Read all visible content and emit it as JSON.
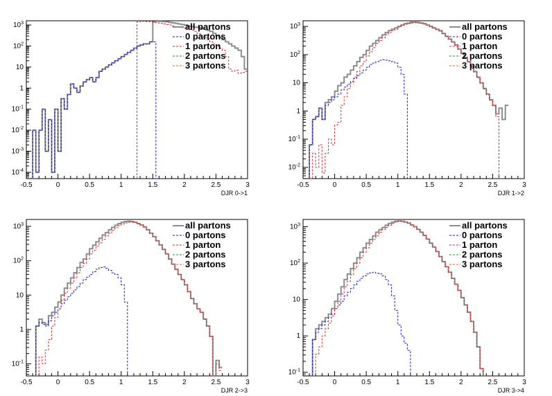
{
  "colors": {
    "all": "#8c8c8c",
    "p0": "#1a1ac8",
    "p1": "#d03030",
    "p2": "#2e8b2e",
    "p3": "#e06020"
  },
  "chart_data": [
    {
      "type": "histogram-step",
      "xlabel": "DJR 0->1",
      "xlim": [
        -0.5,
        3
      ],
      "ylim_log10": [
        -4.3,
        3.2
      ],
      "log_y": true,
      "xticks": [
        -0.5,
        0,
        0.5,
        1,
        1.5,
        2,
        2.5,
        3
      ],
      "yticks": [
        {
          "exp": -4,
          "label": "10-4"
        },
        {
          "exp": -3,
          "label": "10-3"
        },
        {
          "exp": -2,
          "label": "10-2"
        },
        {
          "exp": -1,
          "label": "10-1"
        },
        {
          "exp": 0,
          "label": "1"
        },
        {
          "exp": 1,
          "label": "10"
        },
        {
          "exp": 2,
          "label": "102"
        },
        {
          "exp": 3,
          "label": "103"
        }
      ],
      "legend": [
        "all partons",
        "0 partons",
        "1 parton",
        "2 partons",
        "3 partons"
      ],
      "series": [
        {
          "name": "all partons",
          "color_key": "all",
          "x0": -0.5,
          "dx": 0.05,
          "log10_values": [
            null,
            null,
            -2,
            -4,
            -2,
            -1,
            -3,
            -1.5,
            -4,
            -1,
            -3,
            -0.5,
            -1,
            -0.3,
            0.2,
            0,
            -0.2,
            0.1,
            0.3,
            0.4,
            0.5,
            0.3,
            0.5,
            0.8,
            0.9,
            1,
            1.1,
            1.2,
            1.3,
            1.4,
            1.5,
            1.6,
            1.7,
            1.8,
            1.9,
            2,
            2.05,
            2.1,
            2.1,
            2.2,
            3.15,
            3.18,
            3.17,
            3.16,
            3.15,
            3.12,
            3.1,
            3.08,
            3.05,
            3.02,
            3,
            2.95,
            2.92,
            2.9,
            2.88,
            2.85,
            2.8,
            2.75,
            2.7,
            2.6,
            2.5,
            2.4,
            2.3,
            2.2,
            2.1,
            2,
            1.9,
            1.8,
            1.5,
            0.9
          ]
        },
        {
          "name": "0 partons",
          "color_key": "p0",
          "x0": -0.5,
          "dx": 0.05,
          "log10_values": [
            null,
            null,
            -2,
            -4,
            -2,
            -1,
            -3,
            -1.5,
            -4,
            -1,
            -3,
            -0.5,
            -1,
            -0.3,
            0.2,
            0,
            -0.2,
            0.1,
            0.3,
            0.4,
            0.5,
            0.3,
            0.5,
            0.8,
            0.9,
            1,
            1.1,
            1.2,
            1.3,
            1.4,
            1.5,
            1.6,
            1.7,
            1.8,
            1.9,
            2,
            2.05,
            2.1,
            2.1,
            2.2,
            2.2,
            null
          ]
        },
        {
          "name": "1 parton",
          "color_key": "p1",
          "x0": 1.25,
          "dx": 0.05,
          "log10_values": [
            3.15,
            3.18,
            3.17,
            3.16,
            3.15,
            3.12,
            3.1,
            3.08,
            3.05,
            3.02,
            3,
            2.95,
            2.92,
            2.9,
            2.88,
            2.85,
            2.8,
            2.75,
            2.7,
            2.6,
            2.5,
            2.4,
            2.3,
            2.2,
            2.1,
            2,
            1.9,
            1.8,
            1.5,
            0.9,
            0.8,
            0.85,
            0.7,
            0.75,
            0.8
          ]
        }
      ]
    },
    {
      "type": "histogram-step",
      "xlabel": "DJR 1->2",
      "xlim": [
        -0.5,
        3
      ],
      "ylim_log10": [
        -2.4,
        3.2
      ],
      "log_y": true,
      "xticks": [
        -0.5,
        0,
        0.5,
        1,
        1.5,
        2,
        2.5,
        3
      ],
      "yticks": [
        {
          "exp": -2,
          "label": "10-2"
        },
        {
          "exp": -1,
          "label": "10-1"
        },
        {
          "exp": 0,
          "label": "1"
        },
        {
          "exp": 1,
          "label": "10"
        },
        {
          "exp": 2,
          "label": "102"
        },
        {
          "exp": 3,
          "label": "103"
        }
      ],
      "legend": [
        "all partons",
        "0 partons",
        "1 parton",
        "2 partons",
        "3 partons"
      ],
      "series": [
        {
          "name": "all partons",
          "color_key": "all",
          "x0": -0.4,
          "dx": 0.05,
          "log10_values": [
            -1.2,
            -0.3,
            -0.2,
            0.1,
            -0.3,
            0.3,
            0.4,
            0.5,
            0.7,
            0.9,
            1,
            1.2,
            1.3,
            1.45,
            1.6,
            1.75,
            1.9,
            2,
            2.15,
            2.3,
            2.4,
            2.5,
            2.6,
            2.7,
            2.78,
            2.85,
            2.9,
            2.95,
            3,
            3.05,
            3.1,
            3.12,
            3.15,
            3.15,
            3.14,
            3.12,
            3.1,
            3.05,
            3,
            2.95,
            2.9,
            2.85,
            2.75,
            2.65,
            2.55,
            2.45,
            2.35,
            2.2,
            2.05,
            1.9,
            1.75,
            1.6,
            1.4,
            1.2,
            1,
            0.8,
            0.6,
            0.4,
            0.2,
            -0.1,
            0.1,
            -0.3,
            0.2
          ]
        },
        {
          "name": "0 partons",
          "color_key": "p0",
          "x0": -0.4,
          "dx": 0.05,
          "log10_values": [
            -1.2,
            -0.3,
            -0.2,
            0.1,
            -0.3,
            0.2,
            0.3,
            0.4,
            0.5,
            0.6,
            0.75,
            0.85,
            0.95,
            1.05,
            1.15,
            1.25,
            1.35,
            1.45,
            1.55,
            1.65,
            1.7,
            1.75,
            1.8,
            1.82,
            1.8,
            1.78,
            1.75,
            1.7,
            1.55,
            1.3,
            0.6,
            null
          ]
        },
        {
          "name": "1 parton",
          "color_key": "p1",
          "x0": -0.4,
          "dx": 0.05,
          "log10_values": [
            -2.4,
            -1.5,
            -2,
            -1.2,
            -2.2,
            -1.5,
            -1,
            -1.2,
            -0.5,
            -0.4,
            0.2,
            0.5,
            0.8,
            1,
            1.2,
            1.4,
            1.6,
            1.75,
            1.95,
            2.1,
            2.25,
            2.4,
            2.5,
            2.6,
            2.7,
            2.78,
            2.85,
            2.9,
            2.98,
            3.03,
            3.08,
            3.1,
            3.12,
            3.13,
            3.12,
            3.11,
            3.08,
            3.04,
            2.98,
            2.94,
            2.88,
            2.83,
            2.74,
            2.64,
            2.54,
            2.44,
            2.33,
            2.18,
            2.03,
            1.88,
            1.73,
            1.58,
            1.38,
            1.18,
            0.98,
            0.78,
            0.58,
            0.38,
            0.18,
            -0.2,
            -2.4
          ]
        }
      ]
    },
    {
      "type": "histogram-step",
      "xlabel": "DJR 2->3",
      "xlim": [
        -0.5,
        3
      ],
      "ylim_log10": [
        -1.35,
        3.2
      ],
      "log_y": true,
      "xticks": [
        -0.5,
        0,
        0.5,
        1,
        1.5,
        2,
        2.5,
        3
      ],
      "yticks": [
        {
          "exp": -1,
          "label": "10-1"
        },
        {
          "exp": 0,
          "label": "1"
        },
        {
          "exp": 1,
          "label": "10"
        },
        {
          "exp": 2,
          "label": "102"
        },
        {
          "exp": 3,
          "label": "103"
        }
      ],
      "legend": [
        "all partons",
        "0 partons",
        "1 parton",
        "2 partons",
        "3 partons"
      ],
      "series": [
        {
          "name": "all partons",
          "color_key": "all",
          "x0": -0.35,
          "dx": 0.05,
          "log10_values": [
            0.1,
            0.3,
            0.2,
            0.15,
            0.4,
            0.5,
            0.65,
            0.8,
            1,
            1.2,
            1.35,
            1.5,
            1.65,
            1.8,
            1.95,
            2.05,
            2.2,
            2.35,
            2.45,
            2.55,
            2.65,
            2.75,
            2.82,
            2.9,
            2.97,
            3.03,
            3.08,
            3.12,
            3.14,
            3.15,
            3.14,
            3.12,
            3.08,
            3.04,
            2.98,
            2.9,
            2.8,
            2.7,
            2.58,
            2.46,
            2.33,
            2.2,
            2.05,
            1.9,
            1.75,
            1.6,
            1.45,
            1.3,
            1.1,
            0.9,
            0.75,
            0.6,
            0.5,
            0.3,
            0.1,
            -0.2,
            -1.35,
            -0.9,
            -1.1
          ]
        },
        {
          "name": "0 partons",
          "color_key": "p0",
          "x0": -0.35,
          "dx": 0.05,
          "log10_values": [
            0.1,
            0.2,
            0.15,
            0.1,
            0.25,
            0.4,
            0.5,
            0.6,
            0.75,
            0.85,
            0.95,
            1.05,
            1.15,
            1.25,
            1.35,
            1.45,
            1.52,
            1.6,
            1.68,
            1.75,
            1.8,
            1.82,
            1.78,
            1.72,
            1.65,
            1.6,
            1.5,
            1.3,
            0.8,
            -1.35,
            null
          ]
        },
        {
          "name": "1 parton",
          "color_key": "p1",
          "x0": -0.35,
          "dx": 0.05,
          "log10_values": [
            -1.35,
            -0.8,
            -1,
            -0.6,
            -0.3,
            0.1,
            0.35,
            0.6,
            0.85,
            1.05,
            1.2,
            1.35,
            1.5,
            1.65,
            1.8,
            1.92,
            2.05,
            2.2,
            2.3,
            2.42,
            2.52,
            2.62,
            2.72,
            2.8,
            2.88,
            2.96,
            3.02,
            3.07,
            3.1,
            3.12,
            3.12,
            3.11,
            3.08,
            3.04,
            2.98,
            2.9,
            2.8,
            2.7,
            2.58,
            2.46,
            2.33,
            2.2,
            2.05,
            1.9,
            1.75,
            1.6,
            1.45,
            1.3,
            1.1,
            0.9,
            0.75,
            0.6,
            0.5,
            0.3,
            0.1,
            -0.2,
            -1.35,
            -1,
            -1.2
          ]
        }
      ]
    },
    {
      "type": "histogram-step",
      "xlabel": "DJR 3->4",
      "xlim": [
        -0.5,
        3
      ],
      "ylim_log10": [
        -1.1,
        3.2
      ],
      "log_y": true,
      "xticks": [
        -0.5,
        0,
        0.5,
        1,
        1.5,
        2,
        2.5,
        3
      ],
      "yticks": [
        {
          "exp": -1,
          "label": "10-1"
        },
        {
          "exp": 0,
          "label": "1"
        },
        {
          "exp": 1,
          "label": "10"
        },
        {
          "exp": 2,
          "label": "102"
        },
        {
          "exp": 3,
          "label": "103"
        }
      ],
      "legend": [
        "all partons",
        "0 partons",
        "1 parton",
        "2 partons",
        "3 partons"
      ],
      "series": [
        {
          "name": "all partons",
          "color_key": "all",
          "x0": -0.35,
          "dx": 0.05,
          "log10_values": [
            -0.1,
            0.2,
            0.3,
            0.4,
            0.5,
            0.6,
            0.75,
            0.95,
            1.15,
            1.35,
            1.55,
            1.7,
            1.85,
            2,
            2.15,
            2.3,
            2.42,
            2.55,
            2.65,
            2.75,
            2.85,
            2.92,
            2.98,
            3.04,
            3.09,
            3.13,
            3.15,
            3.16,
            3.15,
            3.13,
            3.1,
            3.05,
            3,
            2.93,
            2.85,
            2.76,
            2.66,
            2.55,
            2.44,
            2.32,
            2.18,
            2.04,
            1.9,
            1.75,
            1.58,
            1.42,
            1.25,
            1.05,
            0.85,
            0.65,
            0.4,
            0.1,
            -0.3,
            -0.9,
            -1.1
          ]
        },
        {
          "name": "0 partons",
          "color_key": "p0",
          "x0": -0.35,
          "dx": 0.05,
          "log10_values": [
            -0.1,
            0.1,
            0.2,
            0.3,
            0.4,
            0.5,
            0.6,
            0.75,
            0.85,
            0.95,
            1.1,
            1.2,
            1.3,
            1.4,
            1.5,
            1.58,
            1.65,
            1.7,
            1.73,
            1.75,
            1.72,
            1.7,
            1.65,
            1.55,
            1.4,
            1.1,
            0.7,
            0.3,
            0,
            -0.2,
            -0.4,
            -1.1,
            null
          ]
        },
        {
          "name": "1 parton",
          "color_key": "p1",
          "x0": -0.35,
          "dx": 0.05,
          "log10_values": [
            -1.1,
            -0.5,
            -0.3,
            0,
            0.2,
            0.35,
            0.55,
            0.75,
            0.95,
            1.15,
            1.35,
            1.5,
            1.68,
            1.85,
            2,
            2.15,
            2.3,
            2.42,
            2.55,
            2.65,
            2.75,
            2.85,
            2.92,
            2.98,
            3.04,
            3.09,
            3.13,
            3.15,
            3.15,
            3.13,
            3.1,
            3.05,
            3,
            2.93,
            2.85,
            2.76,
            2.66,
            2.55,
            2.44,
            2.32,
            2.18,
            2.04,
            1.9,
            1.75,
            1.58,
            1.42,
            1.25,
            1.05,
            0.85,
            0.65,
            0.4,
            0.1,
            -0.3,
            -0.9,
            -1.1
          ]
        }
      ]
    }
  ]
}
